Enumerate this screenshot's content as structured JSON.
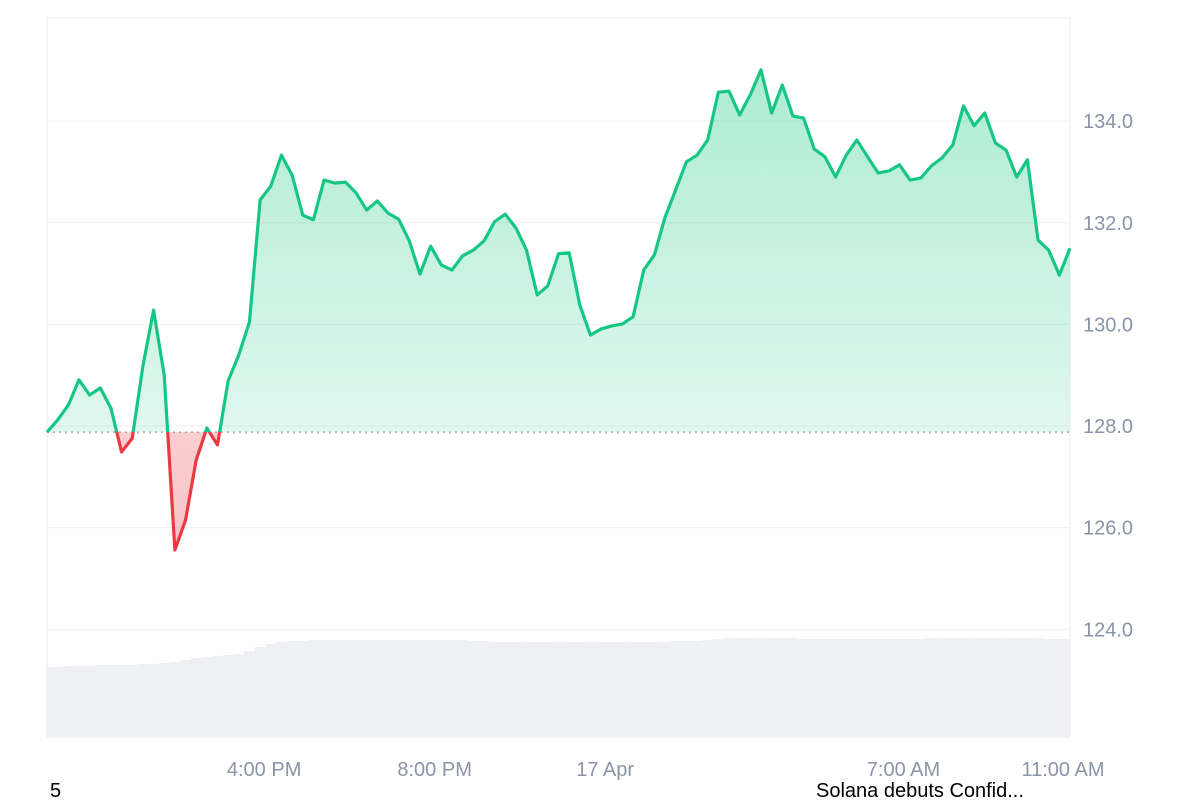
{
  "chart_data": {
    "type": "line",
    "x": [
      11,
      11.25,
      11.5,
      11.75,
      12,
      12.25,
      12.5,
      12.75,
      13,
      13.25,
      13.5,
      13.75,
      14,
      14.25,
      14.5,
      14.75,
      15,
      15.25,
      15.5,
      15.75,
      16,
      16.25,
      16.5,
      16.75,
      17,
      17.25,
      17.5,
      17.75,
      18,
      18.25,
      18.5,
      18.75,
      19,
      19.25,
      19.5,
      19.75,
      20,
      20.25,
      20.5,
      20.75,
      21,
      21.25,
      21.5,
      21.75,
      22,
      22.25,
      22.5,
      22.75,
      23,
      23.25,
      23.5,
      23.75,
      24,
      24.25,
      24.5,
      24.75,
      25,
      25.25,
      25.5,
      25.75,
      26,
      26.25,
      26.5,
      26.75,
      27,
      27.25,
      27.5,
      27.75,
      28,
      28.25,
      28.5,
      28.75,
      29,
      29.25,
      29.5,
      29.75,
      30,
      30.25,
      30.5,
      30.75,
      31,
      31.25,
      31.5,
      31.75,
      32,
      32.25,
      32.5,
      32.75,
      33,
      33.25,
      33.5,
      33.75,
      34,
      34.25,
      34.5,
      34.75,
      35
    ],
    "values": [
      127.88,
      128.12,
      128.41,
      128.91,
      128.61,
      128.75,
      128.35,
      127.49,
      127.76,
      129.18,
      130.28,
      129.0,
      125.56,
      126.15,
      127.33,
      127.96,
      127.63,
      128.89,
      129.4,
      130.05,
      132.45,
      132.72,
      133.33,
      132.94,
      132.15,
      132.06,
      132.84,
      132.78,
      132.8,
      132.59,
      132.25,
      132.43,
      132.19,
      132.07,
      131.64,
      130.99,
      131.54,
      131.17,
      131.07,
      131.35,
      131.46,
      131.64,
      132.02,
      132.17,
      131.9,
      131.46,
      130.58,
      130.76,
      131.39,
      131.41,
      130.38,
      129.79,
      129.91,
      129.97,
      130.01,
      130.15,
      131.07,
      131.37,
      132.11,
      132.65,
      133.2,
      133.33,
      133.63,
      134.57,
      134.59,
      134.12,
      134.52,
      135.01,
      134.16,
      134.71,
      134.1,
      134.06,
      133.45,
      133.3,
      132.9,
      133.33,
      133.63,
      133.3,
      132.98,
      133.02,
      133.14,
      132.84,
      132.88,
      133.12,
      133.28,
      133.53,
      134.3,
      133.91,
      134.16,
      133.57,
      133.43,
      132.9,
      133.24,
      131.66,
      131.46,
      130.97,
      131.5
    ],
    "volume": [
      70,
      70,
      71,
      71,
      71,
      72,
      72,
      72,
      72,
      73,
      73,
      74,
      75,
      77,
      79,
      80,
      81,
      82,
      83,
      86,
      90,
      93,
      95,
      96,
      96,
      97,
      97,
      97,
      97,
      97,
      97,
      97,
      97,
      97,
      97,
      97,
      97,
      97,
      97,
      97,
      96,
      96,
      95,
      95,
      95,
      95,
      95,
      95,
      95,
      95,
      95,
      95,
      95,
      95,
      95,
      95,
      95,
      95,
      95,
      96,
      96,
      96,
      97,
      98,
      99,
      99,
      99,
      99,
      99,
      99,
      99,
      98,
      98,
      98,
      98,
      98,
      98,
      98,
      98,
      98,
      98,
      98,
      98,
      99,
      99,
      99,
      99,
      99,
      99,
      99,
      99,
      99,
      99,
      99,
      98,
      98,
      98
    ],
    "volume_lim": [
      0,
      120
    ],
    "baseline": 127.88,
    "up_color": "#16c784",
    "down_color": "#ea3943",
    "volume_color": "#eef0f4",
    "xlim": [
      11,
      35
    ],
    "xticks": [
      {
        "value": 16,
        "label": "4:00 PM"
      },
      {
        "value": 20,
        "label": "8:00 PM"
      },
      {
        "value": 24,
        "label": "17 Apr"
      },
      {
        "value": 31,
        "label": "7:00 AM"
      },
      {
        "value": 35,
        "label": "11:00 AM"
      }
    ],
    "ylim": [
      121.88,
      136.03
    ],
    "yticks": [
      {
        "value": 124,
        "label": "124.0"
      },
      {
        "value": 126,
        "label": "126.0"
      },
      {
        "value": 128,
        "label": "128.0"
      },
      {
        "value": 130,
        "label": "130.0"
      },
      {
        "value": 132,
        "label": "132.0"
      },
      {
        "value": 134,
        "label": "134.0"
      }
    ],
    "grid": true,
    "annotations": [
      "5",
      "Solana debuts Confid..."
    ]
  }
}
